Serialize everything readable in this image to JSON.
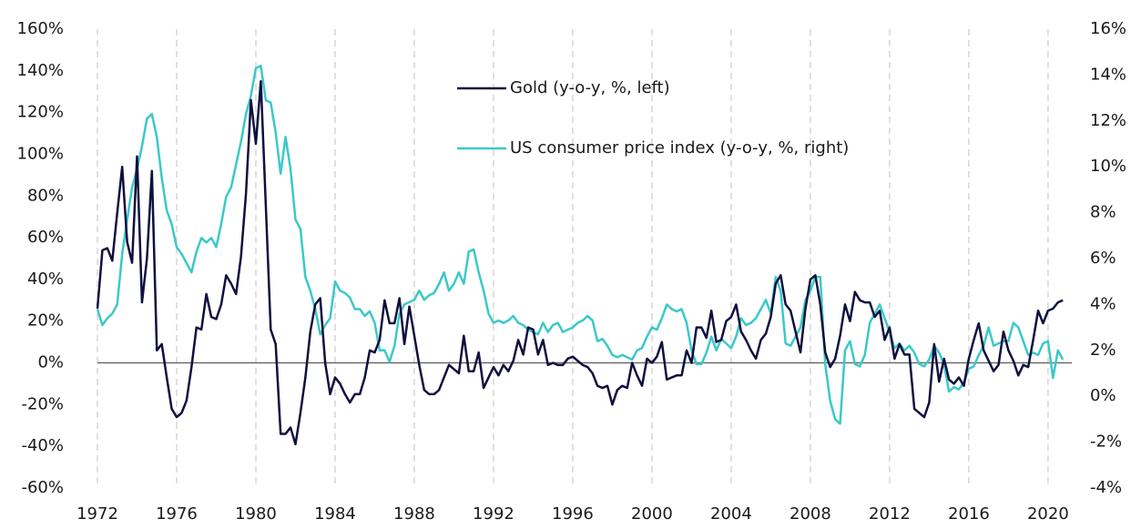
{
  "chart_data": {
    "type": "line",
    "x": [
      1972,
      1972.25,
      1972.5,
      1972.75,
      1973,
      1973.25,
      1973.5,
      1973.75,
      1974,
      1974.25,
      1974.5,
      1974.75,
      1975,
      1975.25,
      1975.5,
      1975.75,
      1976,
      1976.25,
      1976.5,
      1976.75,
      1977,
      1977.25,
      1977.5,
      1977.75,
      1978,
      1978.25,
      1978.5,
      1978.75,
      1979,
      1979.25,
      1979.5,
      1979.75,
      1980,
      1980.25,
      1980.5,
      1980.75,
      1981,
      1981.25,
      1981.5,
      1981.75,
      1982,
      1982.25,
      1982.5,
      1982.75,
      1983,
      1983.25,
      1983.5,
      1983.75,
      1984,
      1984.25,
      1984.5,
      1984.75,
      1985,
      1985.25,
      1985.5,
      1985.75,
      1986,
      1986.25,
      1986.5,
      1986.75,
      1987,
      1987.25,
      1987.5,
      1987.75,
      1988,
      1988.25,
      1988.5,
      1988.75,
      1989,
      1989.25,
      1989.5,
      1989.75,
      1990,
      1990.25,
      1990.5,
      1990.75,
      1991,
      1991.25,
      1991.5,
      1991.75,
      1992,
      1992.25,
      1992.5,
      1992.75,
      1993,
      1993.25,
      1993.5,
      1993.75,
      1994,
      1994.25,
      1994.5,
      1994.75,
      1995,
      1995.25,
      1995.5,
      1995.75,
      1996,
      1996.25,
      1996.5,
      1996.75,
      1997,
      1997.25,
      1997.5,
      1997.75,
      1998,
      1998.25,
      1998.5,
      1998.75,
      1999,
      1999.25,
      1999.5,
      1999.75,
      2000,
      2000.25,
      2000.5,
      2000.75,
      2001,
      2001.25,
      2001.5,
      2001.75,
      2002,
      2002.25,
      2002.5,
      2002.75,
      2003,
      2003.25,
      2003.5,
      2003.75,
      2004,
      2004.25,
      2004.5,
      2004.75,
      2005,
      2005.25,
      2005.5,
      2005.75,
      2006,
      2006.25,
      2006.5,
      2006.75,
      2007,
      2007.25,
      2007.5,
      2007.75,
      2008,
      2008.25,
      2008.5,
      2008.75,
      2009,
      2009.25,
      2009.5,
      2009.75,
      2010,
      2010.25,
      2010.5,
      2010.75,
      2011,
      2011.25,
      2011.5,
      2011.75,
      2012,
      2012.25,
      2012.5,
      2012.75,
      2013,
      2013.25,
      2013.5,
      2013.75,
      2014,
      2014.25,
      2014.5,
      2014.75,
      2015,
      2015.25,
      2015.5,
      2015.75,
      2016,
      2016.25,
      2016.5,
      2016.75,
      2017,
      2017.25,
      2017.5,
      2017.75,
      2018,
      2018.25,
      2018.5,
      2018.75,
      2019,
      2019.25,
      2019.5,
      2019.75,
      2020,
      2020.25,
      2020.5,
      2020.75
    ],
    "series": [
      {
        "name": "Gold (y-o-y, %, left)",
        "color": "#10103f",
        "axis": "y",
        "values": [
          26,
          54,
          55,
          49,
          72,
          94,
          58,
          48,
          99,
          29,
          50,
          92,
          6,
          9,
          -7,
          -22,
          -26,
          -24,
          -18,
          -2,
          17,
          16,
          33,
          22,
          21,
          28,
          42,
          38,
          33,
          51,
          81,
          126,
          105,
          135,
          76,
          16,
          9,
          -34,
          -34,
          -31,
          -39,
          -24,
          -7,
          15,
          28,
          31,
          0,
          -15,
          -7,
          -10,
          -15,
          -19,
          -15,
          -15,
          -7,
          6,
          5,
          11,
          30,
          19,
          19,
          31,
          9,
          27,
          13,
          -1,
          -13,
          -15,
          -15,
          -13,
          -7,
          -1,
          -3,
          -5,
          13,
          -4,
          -4,
          5,
          -12,
          -7,
          -2,
          -6,
          -1,
          -4,
          1,
          11,
          4,
          17,
          16,
          4,
          11,
          -1,
          0,
          -1,
          -1,
          2,
          3,
          1,
          -1,
          -2,
          -5,
          -11,
          -12,
          -11,
          -20,
          -13,
          -11,
          -12,
          0,
          -6,
          -11,
          2,
          0,
          3,
          10,
          -8,
          -7,
          -6,
          -6,
          6,
          0,
          17,
          17,
          12,
          25,
          10,
          11,
          20,
          22,
          28,
          15,
          11,
          6,
          2,
          11,
          14,
          22,
          38,
          42,
          28,
          25,
          15,
          5,
          26,
          40,
          42,
          28,
          5,
          -2,
          2,
          13,
          28,
          20,
          34,
          30,
          29,
          29,
          22,
          25,
          11,
          17,
          2,
          9,
          4,
          4,
          -22,
          -24,
          -26,
          -19,
          9,
          -9,
          2,
          -8,
          -10,
          -7,
          -11,
          2,
          11,
          19,
          6,
          1,
          -4,
          -1,
          15,
          6,
          1,
          -6,
          -1,
          -2,
          11,
          25,
          19,
          25,
          26,
          29,
          30
        ]
      },
      {
        "name": "US consumer price index (y-o-y, %, right)",
        "color": "#3cc8c8",
        "axis": "y2",
        "values": [
          3.8,
          3.1,
          3.4,
          3.6,
          4.0,
          6.2,
          7.7,
          9.1,
          9.9,
          10.9,
          12.1,
          12.3,
          11.3,
          9.5,
          8.1,
          7.5,
          6.5,
          6.2,
          5.8,
          5.4,
          6.3,
          6.9,
          6.7,
          6.9,
          6.5,
          7.5,
          8.7,
          9.1,
          10.1,
          11.1,
          12.3,
          13.1,
          14.3,
          14.4,
          12.9,
          12.8,
          11.5,
          9.7,
          11.3,
          9.9,
          7.7,
          7.3,
          5.2,
          4.6,
          3.8,
          2.7,
          3.1,
          3.4,
          5.0,
          4.6,
          4.5,
          4.3,
          3.8,
          3.8,
          3.5,
          3.7,
          3.2,
          2.0,
          2.0,
          1.5,
          2.2,
          3.6,
          4.0,
          4.1,
          4.2,
          4.6,
          4.2,
          4.4,
          4.5,
          4.9,
          5.4,
          4.6,
          4.9,
          5.4,
          4.9,
          6.3,
          6.4,
          5.4,
          4.6,
          3.6,
          3.2,
          3.3,
          3.2,
          3.3,
          3.5,
          3.2,
          3.1,
          2.9,
          2.8,
          2.7,
          3.2,
          2.8,
          3.1,
          3.2,
          2.8,
          2.9,
          3.0,
          3.2,
          3.3,
          3.5,
          3.3,
          2.4,
          2.5,
          2.2,
          1.8,
          1.7,
          1.8,
          1.7,
          1.6,
          2.0,
          2.1,
          2.6,
          3.0,
          2.9,
          3.4,
          4.0,
          3.8,
          3.7,
          3.8,
          3.2,
          2.0,
          1.4,
          1.4,
          1.9,
          2.6,
          2.0,
          2.5,
          2.3,
          2.1,
          2.6,
          3.4,
          3.1,
          3.2,
          3.4,
          3.8,
          4.2,
          3.6,
          5.2,
          4.6,
          2.3,
          2.2,
          2.6,
          3.0,
          4.2,
          4.6,
          5.2,
          5.2,
          1.4,
          -0.2,
          -1.0,
          -1.2,
          2.0,
          2.4,
          1.4,
          1.3,
          1.8,
          3.2,
          3.6,
          4.0,
          3.4,
          2.8,
          2.1,
          2.3,
          2.0,
          2.2,
          1.9,
          1.4,
          1.3,
          1.6,
          2.2,
          1.9,
          1.4,
          0.2,
          0.4,
          0.3,
          0.6,
          1.2,
          1.3,
          1.8,
          2.2,
          3.0,
          2.2,
          2.3,
          2.4,
          2.4,
          3.2,
          3.0,
          2.4,
          1.8,
          1.9,
          1.8,
          2.3,
          2.4,
          0.8,
          2.0,
          1.6
        ]
      }
    ],
    "xlim": [
      1972,
      2021.2
    ],
    "xticks": [
      1972,
      1976,
      1980,
      1984,
      1988,
      1992,
      1996,
      2000,
      2004,
      2008,
      2012,
      2016,
      2020
    ],
    "ylim": [
      -60,
      160
    ],
    "yticks": [
      {
        "value": -60,
        "label": "-60%"
      },
      {
        "value": -40,
        "label": "-40%"
      },
      {
        "value": -20,
        "label": "-20%"
      },
      {
        "value": 0,
        "label": "0%"
      },
      {
        "value": 20,
        "label": "20%"
      },
      {
        "value": 40,
        "label": "40%"
      },
      {
        "value": 60,
        "label": "60%"
      },
      {
        "value": 80,
        "label": "80%"
      },
      {
        "value": 100,
        "label": "100%"
      },
      {
        "value": 120,
        "label": "120%"
      },
      {
        "value": 140,
        "label": "140%"
      },
      {
        "value": 160,
        "label": "160%"
      }
    ],
    "y2lim": [
      -4,
      16
    ],
    "y2ticks": [
      {
        "value": -4,
        "label": "-4%"
      },
      {
        "value": -2,
        "label": "-2%"
      },
      {
        "value": 0,
        "label": "0%"
      },
      {
        "value": 2,
        "label": "2%"
      },
      {
        "value": 4,
        "label": "4%"
      },
      {
        "value": 6,
        "label": "6%"
      },
      {
        "value": 8,
        "label": "8%"
      },
      {
        "value": 10,
        "label": "10%"
      },
      {
        "value": 12,
        "label": "12%"
      },
      {
        "value": 14,
        "label": "14%"
      },
      {
        "value": 16,
        "label": "16%"
      }
    ],
    "grid": true,
    "legend": "top"
  }
}
